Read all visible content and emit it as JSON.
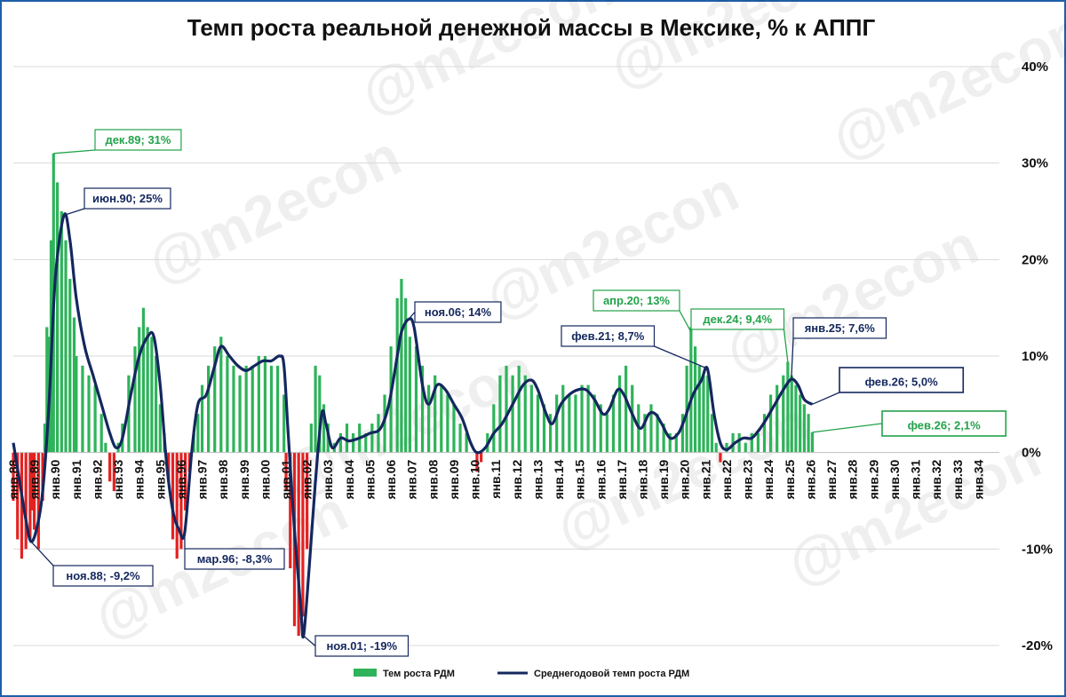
{
  "chart_data": {
    "type": "bar+line",
    "title": "Темп роста реальной денежной массы в Мексике, % к АППГ",
    "watermark": "@m2econ",
    "yaxis": {
      "position": "right",
      "min": -20,
      "max": 40,
      "step": 10,
      "tick_labels": [
        "-20%",
        "-10%",
        "0%",
        "10%",
        "20%",
        "30%",
        "40%"
      ]
    },
    "xaxis": {
      "tick_labels": [
        "янв.88",
        "янв.89",
        "янв.90",
        "янв.91",
        "янв.92",
        "янв.93",
        "янв.94",
        "янв.95",
        "янв.96",
        "янв.97",
        "янв.98",
        "янв.99",
        "янв.00",
        "янв.01",
        "янв.02",
        "янв.03",
        "янв.04",
        "янв.05",
        "янв.06",
        "янв.07",
        "янв.08",
        "янв.09",
        "янв.10",
        "янв.11",
        "янв.12",
        "янв.13",
        "янв.14",
        "янв.15",
        "янв.16",
        "янв.17",
        "янв.18",
        "янв.19",
        "янв.20",
        "янв.21",
        "янв.22",
        "янв.23",
        "янв.24",
        "янв.25",
        "янв.26",
        "янв.27",
        "янв.28",
        "янв.29",
        "янв.30",
        "янв.31",
        "янв.32",
        "янв.33",
        "янв.34"
      ],
      "start_year": 1988,
      "end_year": 2035
    },
    "grid": true,
    "legend": {
      "position": "bottom",
      "entries": [
        "Тем роста РДМ",
        "Среднегодовой темп роста РДМ"
      ]
    },
    "colors": {
      "bar_positive": "#2eb35a",
      "bar_negative": "#e32222",
      "line": "#14275e",
      "grid": "#d9d9d9",
      "frame": "#1f5fa8"
    },
    "series": [
      {
        "name": "Тем роста РДМ",
        "kind": "bar",
        "points": [
          [
            1988.0,
            -5
          ],
          [
            1988.2,
            -9
          ],
          [
            1988.4,
            -11
          ],
          [
            1988.6,
            -10
          ],
          [
            1988.8,
            -9
          ],
          [
            1988.9,
            -6
          ],
          [
            1989.0,
            -8
          ],
          [
            1989.2,
            -10
          ],
          [
            1989.4,
            -5
          ],
          [
            1989.5,
            3
          ],
          [
            1989.6,
            13
          ],
          [
            1989.7,
            12
          ],
          [
            1989.8,
            22
          ],
          [
            1989.917,
            31
          ],
          [
            1990.1,
            28
          ],
          [
            1990.3,
            25
          ],
          [
            1990.5,
            22
          ],
          [
            1990.7,
            18
          ],
          [
            1990.9,
            14
          ],
          [
            1991.0,
            10
          ],
          [
            1991.3,
            9
          ],
          [
            1991.6,
            8
          ],
          [
            1991.9,
            7
          ],
          [
            1992.2,
            4
          ],
          [
            1992.4,
            1
          ],
          [
            1992.6,
            -3
          ],
          [
            1992.8,
            -4
          ],
          [
            1993.0,
            1
          ],
          [
            1993.2,
            3
          ],
          [
            1993.5,
            8
          ],
          [
            1993.8,
            11
          ],
          [
            1994.0,
            13
          ],
          [
            1994.2,
            15
          ],
          [
            1994.4,
            13
          ],
          [
            1994.6,
            12
          ],
          [
            1994.8,
            10
          ],
          [
            1995.0,
            5
          ],
          [
            1995.2,
            2
          ],
          [
            1995.4,
            -3
          ],
          [
            1995.6,
            -9
          ],
          [
            1995.8,
            -11
          ],
          [
            1996.0,
            -10
          ],
          [
            1996.2,
            -6
          ],
          [
            1996.4,
            -2
          ],
          [
            1996.6,
            2
          ],
          [
            1996.8,
            4
          ],
          [
            1997.0,
            7
          ],
          [
            1997.3,
            9
          ],
          [
            1997.6,
            11
          ],
          [
            1997.9,
            12
          ],
          [
            1998.2,
            10
          ],
          [
            1998.5,
            9
          ],
          [
            1998.8,
            8
          ],
          [
            1999.1,
            9
          ],
          [
            1999.4,
            9
          ],
          [
            1999.7,
            10
          ],
          [
            2000.0,
            10
          ],
          [
            2000.3,
            9
          ],
          [
            2000.6,
            9
          ],
          [
            2000.9,
            6
          ],
          [
            2001.0,
            -4
          ],
          [
            2001.2,
            -12
          ],
          [
            2001.4,
            -18
          ],
          [
            2001.6,
            -19
          ],
          [
            2001.8,
            -17
          ],
          [
            2002.0,
            -10
          ],
          [
            2002.2,
            3
          ],
          [
            2002.4,
            9
          ],
          [
            2002.6,
            8
          ],
          [
            2002.8,
            5
          ],
          [
            2003.0,
            3
          ],
          [
            2003.3,
            1
          ],
          [
            2003.6,
            2
          ],
          [
            2003.9,
            3
          ],
          [
            2004.2,
            2
          ],
          [
            2004.5,
            3
          ],
          [
            2004.8,
            2
          ],
          [
            2005.1,
            3
          ],
          [
            2005.4,
            4
          ],
          [
            2005.7,
            6
          ],
          [
            2006.0,
            11
          ],
          [
            2006.3,
            16
          ],
          [
            2006.5,
            18
          ],
          [
            2006.7,
            16
          ],
          [
            2006.9,
            12
          ],
          [
            2007.2,
            11
          ],
          [
            2007.5,
            9
          ],
          [
            2007.8,
            7
          ],
          [
            2008.1,
            8
          ],
          [
            2008.4,
            7
          ],
          [
            2008.7,
            6
          ],
          [
            2009.0,
            5
          ],
          [
            2009.3,
            3
          ],
          [
            2009.6,
            2
          ],
          [
            2009.9,
            0
          ],
          [
            2010.1,
            -2
          ],
          [
            2010.3,
            -1
          ],
          [
            2010.6,
            2
          ],
          [
            2010.9,
            5
          ],
          [
            2011.2,
            8
          ],
          [
            2011.5,
            9
          ],
          [
            2011.8,
            8
          ],
          [
            2012.1,
            9
          ],
          [
            2012.4,
            8
          ],
          [
            2012.7,
            7
          ],
          [
            2013.0,
            6
          ],
          [
            2013.3,
            5
          ],
          [
            2013.6,
            4
          ],
          [
            2013.9,
            6
          ],
          [
            2014.2,
            7
          ],
          [
            2014.5,
            6
          ],
          [
            2014.8,
            6
          ],
          [
            2015.1,
            7
          ],
          [
            2015.4,
            7
          ],
          [
            2015.7,
            6
          ],
          [
            2016.0,
            5
          ],
          [
            2016.3,
            4
          ],
          [
            2016.6,
            6
          ],
          [
            2016.9,
            8
          ],
          [
            2017.2,
            9
          ],
          [
            2017.5,
            7
          ],
          [
            2017.8,
            5
          ],
          [
            2018.1,
            4
          ],
          [
            2018.4,
            5
          ],
          [
            2018.7,
            4
          ],
          [
            2019.0,
            3
          ],
          [
            2019.3,
            2
          ],
          [
            2019.6,
            2
          ],
          [
            2019.9,
            4
          ],
          [
            2020.1,
            9
          ],
          [
            2020.3,
            13
          ],
          [
            2020.5,
            11
          ],
          [
            2020.7,
            9
          ],
          [
            2020.9,
            8
          ],
          [
            2021.1,
            8
          ],
          [
            2021.3,
            4
          ],
          [
            2021.5,
            1
          ],
          [
            2021.7,
            -1
          ],
          [
            2022.0,
            1
          ],
          [
            2022.3,
            2
          ],
          [
            2022.6,
            2
          ],
          [
            2022.9,
            1
          ],
          [
            2023.2,
            2
          ],
          [
            2023.5,
            2
          ],
          [
            2023.8,
            4
          ],
          [
            2024.1,
            6
          ],
          [
            2024.4,
            7
          ],
          [
            2024.7,
            8
          ],
          [
            2024.917,
            9.4
          ],
          [
            2025.1,
            8
          ],
          [
            2025.3,
            7
          ],
          [
            2025.5,
            6
          ],
          [
            2025.7,
            5
          ],
          [
            2025.9,
            4
          ],
          [
            2026.083,
            2.1
          ]
        ]
      },
      {
        "name": "Среднегодовой темп роста РДМ",
        "kind": "line",
        "points": [
          [
            1988.0,
            1
          ],
          [
            1988.3,
            -3
          ],
          [
            1988.6,
            -7
          ],
          [
            1988.833,
            -9.2
          ],
          [
            1989.1,
            -8
          ],
          [
            1989.4,
            -4
          ],
          [
            1989.7,
            5
          ],
          [
            1990.0,
            18
          ],
          [
            1990.417,
            24.6
          ],
          [
            1990.7,
            22
          ],
          [
            1991.0,
            16
          ],
          [
            1991.4,
            11
          ],
          [
            1991.8,
            8
          ],
          [
            1992.2,
            5
          ],
          [
            1992.6,
            2
          ],
          [
            1992.9,
            0.5
          ],
          [
            1993.2,
            1.5
          ],
          [
            1993.6,
            6
          ],
          [
            1994.0,
            10
          ],
          [
            1994.4,
            12
          ],
          [
            1994.7,
            12
          ],
          [
            1995.0,
            7
          ],
          [
            1995.3,
            -1
          ],
          [
            1995.6,
            -6
          ],
          [
            1995.9,
            -8
          ],
          [
            1996.167,
            -8.3
          ],
          [
            1996.5,
            0
          ],
          [
            1996.8,
            5
          ],
          [
            1997.2,
            6
          ],
          [
            1997.6,
            9
          ],
          [
            1997.9,
            11
          ],
          [
            1998.3,
            10
          ],
          [
            1998.7,
            9
          ],
          [
            1999.1,
            8.5
          ],
          [
            1999.5,
            9
          ],
          [
            1999.9,
            9.5
          ],
          [
            2000.3,
            9.5
          ],
          [
            2000.7,
            10
          ],
          [
            2000.9,
            9
          ],
          [
            2001.1,
            2
          ],
          [
            2001.4,
            -8
          ],
          [
            2001.7,
            -16
          ],
          [
            2001.833,
            -19
          ],
          [
            2002.1,
            -12
          ],
          [
            2002.4,
            -3
          ],
          [
            2002.7,
            4
          ],
          [
            2002.9,
            3
          ],
          [
            2003.2,
            0.5
          ],
          [
            2003.6,
            1.5
          ],
          [
            2004.0,
            1.2
          ],
          [
            2004.5,
            1.5
          ],
          [
            2005.0,
            2
          ],
          [
            2005.5,
            2.5
          ],
          [
            2005.9,
            5
          ],
          [
            2006.3,
            10
          ],
          [
            2006.5,
            12.5
          ],
          [
            2006.833,
            13.8
          ],
          [
            2007.1,
            13
          ],
          [
            2007.5,
            7
          ],
          [
            2007.8,
            5
          ],
          [
            2008.2,
            7
          ],
          [
            2008.6,
            6.5
          ],
          [
            2009.0,
            5
          ],
          [
            2009.4,
            3.5
          ],
          [
            2009.8,
            1
          ],
          [
            2010.1,
            0
          ],
          [
            2010.5,
            0.5
          ],
          [
            2010.9,
            2
          ],
          [
            2011.3,
            3
          ],
          [
            2011.8,
            5
          ],
          [
            2012.3,
            7
          ],
          [
            2012.7,
            7.5
          ],
          [
            2013.0,
            6.5
          ],
          [
            2013.4,
            4
          ],
          [
            2013.7,
            3
          ],
          [
            2014.1,
            5
          ],
          [
            2014.5,
            6
          ],
          [
            2014.9,
            6.5
          ],
          [
            2015.3,
            6.5
          ],
          [
            2015.7,
            5.5
          ],
          [
            2016.1,
            4
          ],
          [
            2016.4,
            4.5
          ],
          [
            2016.8,
            6.5
          ],
          [
            2017.1,
            6
          ],
          [
            2017.5,
            4
          ],
          [
            2017.9,
            2.5
          ],
          [
            2018.3,
            4
          ],
          [
            2018.6,
            4
          ],
          [
            2018.9,
            3
          ],
          [
            2019.3,
            1.5
          ],
          [
            2019.7,
            2
          ],
          [
            2020.0,
            3.5
          ],
          [
            2020.4,
            6
          ],
          [
            2020.8,
            7.5
          ],
          [
            2021.083,
            8.7
          ],
          [
            2021.4,
            4
          ],
          [
            2021.7,
            1
          ],
          [
            2022.0,
            0.3
          ],
          [
            2022.4,
            1
          ],
          [
            2022.8,
            1.5
          ],
          [
            2023.2,
            1.5
          ],
          [
            2023.6,
            2.5
          ],
          [
            2023.9,
            3.5
          ],
          [
            2024.3,
            5
          ],
          [
            2024.7,
            6.5
          ],
          [
            2025.083,
            7.6
          ],
          [
            2025.4,
            7
          ],
          [
            2025.7,
            5.5
          ],
          [
            2026.083,
            5.0
          ]
        ]
      }
    ],
    "annotations": [
      {
        "label": "ноя.88; -9,2%",
        "x": 1988.833,
        "y": -9.2,
        "series": "line"
      },
      {
        "label": "дек.89; 31%",
        "x": 1989.917,
        "y": 31,
        "series": "bar"
      },
      {
        "label": "июн.90; 25%",
        "x": 1990.417,
        "y": 24.6,
        "series": "line"
      },
      {
        "label": "мар.96; -8,3%",
        "x": 1996.167,
        "y": -8.3,
        "series": "line"
      },
      {
        "label": "ноя.01; -19%",
        "x": 2001.833,
        "y": -19,
        "series": "line"
      },
      {
        "label": "ноя.06; 14%",
        "x": 2006.833,
        "y": 13.8,
        "series": "line"
      },
      {
        "label": "апр.20; 13%",
        "x": 2020.3,
        "y": 12.5,
        "series": "bar"
      },
      {
        "label": "фев.21; 8,7%",
        "x": 2021.083,
        "y": 8.7,
        "series": "line"
      },
      {
        "label": "дек.24; 9,4%",
        "x": 2024.917,
        "y": 9.4,
        "series": "bar"
      },
      {
        "label": "янв.25; 7,6%",
        "x": 2025.083,
        "y": 7.6,
        "series": "line"
      },
      {
        "label": "фев.26; 5,0%",
        "x": 2026.083,
        "y": 5.0,
        "series": "line",
        "emphasis": true
      },
      {
        "label": "фев.26; 2,1%",
        "x": 2026.083,
        "y": 2.1,
        "series": "bar",
        "emphasis": true
      }
    ]
  }
}
